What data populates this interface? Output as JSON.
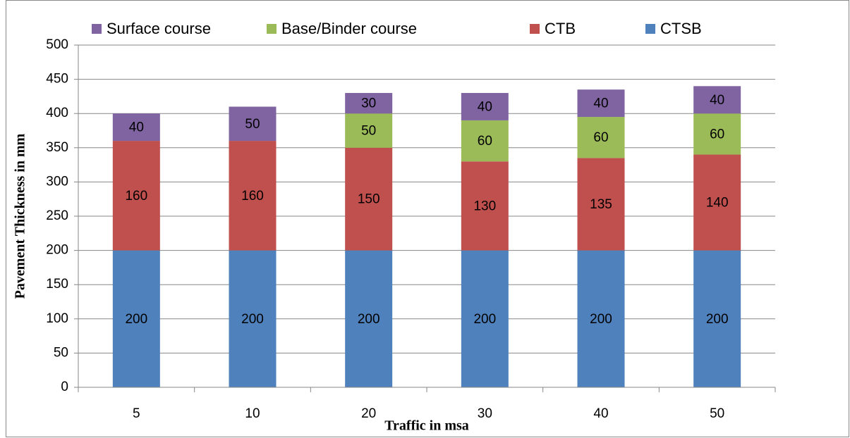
{
  "chart_data": {
    "type": "stacked-bar",
    "xlabel": "Traffic in msa",
    "ylabel": "Pavement Thickness in mm",
    "categories": [
      "5",
      "10",
      "20",
      "30",
      "40",
      "50"
    ],
    "series": [
      {
        "name": "Surface course",
        "color": "#8064a2",
        "values": [
          40,
          50,
          30,
          40,
          40,
          40
        ]
      },
      {
        "name": "Base/Binder course",
        "color": "#9bbb59",
        "values": [
          null,
          null,
          50,
          60,
          60,
          60
        ]
      },
      {
        "name": "CTB",
        "color": "#c0504d",
        "values": [
          160,
          160,
          150,
          130,
          135,
          140
        ]
      },
      {
        "name": "CTSB",
        "color": "#4f81bd",
        "values": [
          200,
          200,
          200,
          200,
          200,
          200
        ]
      }
    ],
    "ylim": [
      0,
      500
    ],
    "yticks": [
      0,
      50,
      100,
      150,
      200,
      250,
      300,
      350,
      400,
      450,
      500
    ],
    "grid": true,
    "legend": "top"
  }
}
